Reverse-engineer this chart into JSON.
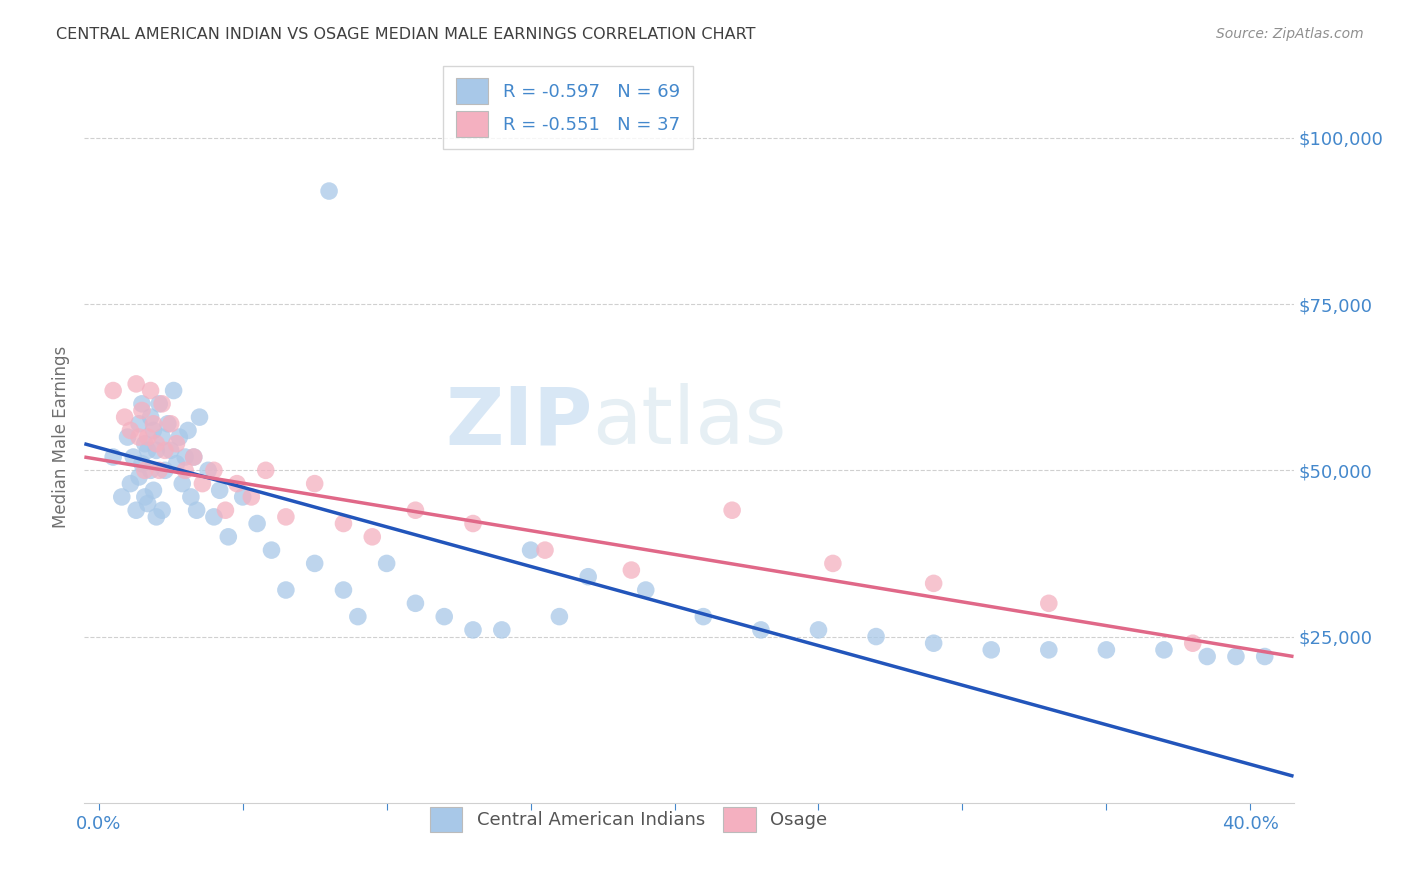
{
  "title": "CENTRAL AMERICAN INDIAN VS OSAGE MEDIAN MALE EARNINGS CORRELATION CHART",
  "source": "Source: ZipAtlas.com",
  "ylabel": "Median Male Earnings",
  "ytick_labels": [
    "$25,000",
    "$50,000",
    "$75,000",
    "$100,000"
  ],
  "ytick_values": [
    25000,
    50000,
    75000,
    100000
  ],
  "ymin": 0,
  "ymax": 110000,
  "xmin": -0.005,
  "xmax": 0.415,
  "xticks": [
    0.0,
    0.05,
    0.1,
    0.15,
    0.2,
    0.25,
    0.3,
    0.35,
    0.4
  ],
  "watermark_zip": "ZIP",
  "watermark_atlas": "atlas",
  "legend_text_1": "R = -0.597   N = 69",
  "legend_text_2": "R = -0.551   N = 37",
  "legend_blue_label": "Central American Indians",
  "legend_pink_label": "Osage",
  "blue_scatter_color": "#a8c8e8",
  "pink_scatter_color": "#f4b0c0",
  "blue_line_color": "#2255bb",
  "pink_line_color": "#e06888",
  "title_color": "#404040",
  "source_color": "#909090",
  "axis_tick_color": "#4488cc",
  "ylabel_color": "#707070",
  "grid_color": "#d0d0d0",
  "blue_scatter_x": [
    0.005,
    0.008,
    0.01,
    0.011,
    0.012,
    0.013,
    0.014,
    0.014,
    0.015,
    0.015,
    0.016,
    0.016,
    0.017,
    0.017,
    0.018,
    0.018,
    0.019,
    0.019,
    0.02,
    0.02,
    0.021,
    0.022,
    0.022,
    0.023,
    0.024,
    0.025,
    0.026,
    0.027,
    0.028,
    0.029,
    0.03,
    0.031,
    0.032,
    0.033,
    0.034,
    0.035,
    0.038,
    0.04,
    0.042,
    0.045,
    0.05,
    0.055,
    0.06,
    0.065,
    0.075,
    0.085,
    0.09,
    0.1,
    0.11,
    0.12,
    0.13,
    0.14,
    0.15,
    0.17,
    0.19,
    0.21,
    0.23,
    0.25,
    0.27,
    0.29,
    0.31,
    0.33,
    0.35,
    0.37,
    0.385,
    0.395,
    0.405,
    0.16,
    0.08
  ],
  "blue_scatter_y": [
    52000,
    46000,
    55000,
    48000,
    52000,
    44000,
    57000,
    49000,
    60000,
    51000,
    54000,
    46000,
    53000,
    45000,
    58000,
    50000,
    56000,
    47000,
    53000,
    43000,
    60000,
    55000,
    44000,
    50000,
    57000,
    53000,
    62000,
    51000,
    55000,
    48000,
    52000,
    56000,
    46000,
    52000,
    44000,
    58000,
    50000,
    43000,
    47000,
    40000,
    46000,
    42000,
    38000,
    32000,
    36000,
    32000,
    28000,
    36000,
    30000,
    28000,
    26000,
    26000,
    38000,
    34000,
    32000,
    28000,
    26000,
    26000,
    25000,
    24000,
    23000,
    23000,
    23000,
    23000,
    22000,
    22000,
    22000,
    28000,
    92000
  ],
  "pink_scatter_x": [
    0.005,
    0.009,
    0.011,
    0.013,
    0.014,
    0.015,
    0.016,
    0.017,
    0.018,
    0.019,
    0.02,
    0.021,
    0.022,
    0.023,
    0.025,
    0.027,
    0.03,
    0.033,
    0.036,
    0.04,
    0.044,
    0.048,
    0.053,
    0.058,
    0.065,
    0.075,
    0.085,
    0.095,
    0.11,
    0.13,
    0.155,
    0.185,
    0.22,
    0.255,
    0.29,
    0.33,
    0.38
  ],
  "pink_scatter_y": [
    62000,
    58000,
    56000,
    63000,
    55000,
    59000,
    50000,
    55000,
    62000,
    57000,
    54000,
    50000,
    60000,
    53000,
    57000,
    54000,
    50000,
    52000,
    48000,
    50000,
    44000,
    48000,
    46000,
    50000,
    43000,
    48000,
    42000,
    40000,
    44000,
    42000,
    38000,
    35000,
    44000,
    36000,
    33000,
    30000,
    24000
  ],
  "blue_line_x0": -0.005,
  "blue_line_x1": 0.415,
  "blue_line_y0": 54000,
  "blue_line_y1": 4000,
  "pink_line_x0": -0.005,
  "pink_line_x1": 0.415,
  "pink_line_y0": 52000,
  "pink_line_y1": 22000
}
